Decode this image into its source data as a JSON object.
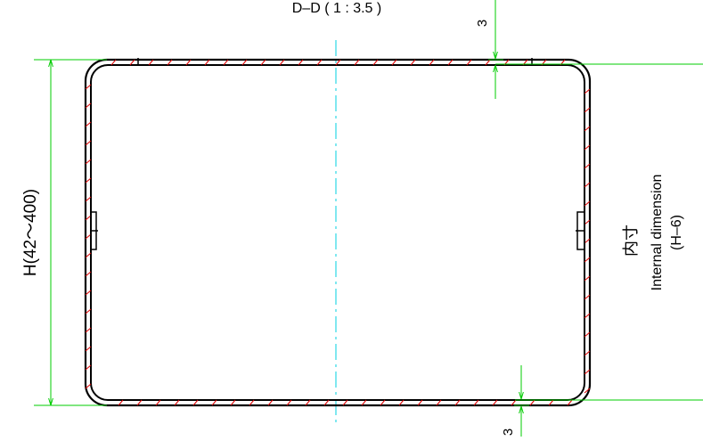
{
  "section_title": "D–D ( 1 : 3.5 )",
  "height_label": "H(42〜400)",
  "internal_label_jp": "内寸",
  "internal_label_en": "Internal dimension",
  "internal_label_formula": "(H–6)",
  "top_wall_value": "3",
  "bottom_wall_value": "3",
  "colors": {
    "outline": "#000000",
    "dimension": "#00cc00",
    "hatch": "#e00000",
    "centerline": "#00d0e0"
  }
}
